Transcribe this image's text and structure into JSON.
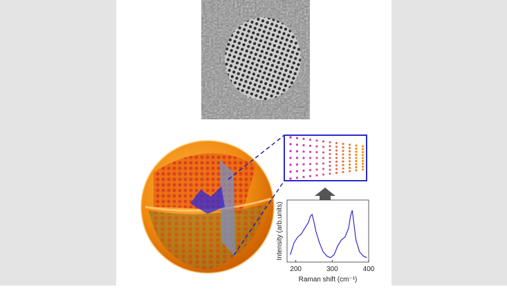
{
  "chart_data": {
    "type": "line",
    "xlabel": "Raman shift (cm⁻¹)",
    "ylabel": "Intensity (arb.units)",
    "xlim": [
      176,
      400
    ],
    "xticks": [
      200,
      300,
      400
    ],
    "ylim": [
      0,
      1
    ],
    "color": "#2a2ad0",
    "x": [
      185,
      195,
      205,
      215,
      225,
      235,
      240,
      245,
      250,
      255,
      265,
      275,
      285,
      295,
      305,
      315,
      325,
      335,
      345,
      350,
      355,
      360,
      365,
      375,
      385,
      395
    ],
    "values": [
      0.1,
      0.3,
      0.4,
      0.45,
      0.55,
      0.65,
      0.75,
      0.78,
      0.65,
      0.5,
      0.3,
      0.15,
      0.08,
      0.05,
      0.1,
      0.25,
      0.35,
      0.4,
      0.55,
      0.75,
      0.85,
      0.6,
      0.35,
      0.15,
      0.08,
      0.05
    ]
  }
}
